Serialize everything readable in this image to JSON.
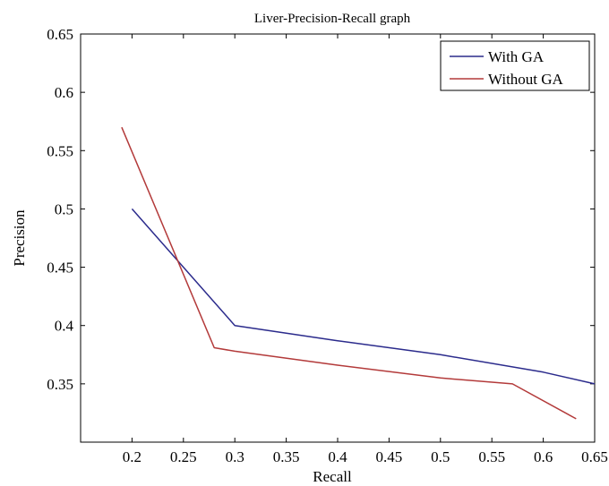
{
  "chart_data": {
    "type": "line",
    "title": "Liver-Precision-Recall graph",
    "xlabel": "Recall",
    "ylabel": "Precision",
    "xlim": [
      0.15,
      0.65
    ],
    "ylim": [
      0.3,
      0.65
    ],
    "x_ticks": [
      0.2,
      0.25,
      0.3,
      0.35,
      0.4,
      0.45,
      0.5,
      0.55,
      0.6,
      0.65
    ],
    "x_tick_labels": [
      "0.2",
      "0.25",
      "0.3",
      "0.35",
      "0.4",
      "0.45",
      "0.5",
      "0.55",
      "0.6",
      "0.65"
    ],
    "y_ticks": [
      0.35,
      0.4,
      0.45,
      0.5,
      0.55,
      0.6,
      0.65
    ],
    "y_tick_labels": [
      "0.35",
      "0.4",
      "0.45",
      "0.5",
      "0.55",
      "0.6",
      "0.65"
    ],
    "grid": false,
    "legend_position": "top-right",
    "series": [
      {
        "name": "With GA",
        "color": "#2b2b8c",
        "x": [
          0.2,
          0.3,
          0.4,
          0.5,
          0.6,
          0.65
        ],
        "y": [
          0.5,
          0.4,
          0.387,
          0.375,
          0.36,
          0.35
        ]
      },
      {
        "name": "Without GA",
        "color": "#b33a3a",
        "x": [
          0.19,
          0.28,
          0.3,
          0.4,
          0.5,
          0.57,
          0.632
        ],
        "y": [
          0.57,
          0.381,
          0.378,
          0.366,
          0.355,
          0.35,
          0.32
        ]
      }
    ]
  }
}
